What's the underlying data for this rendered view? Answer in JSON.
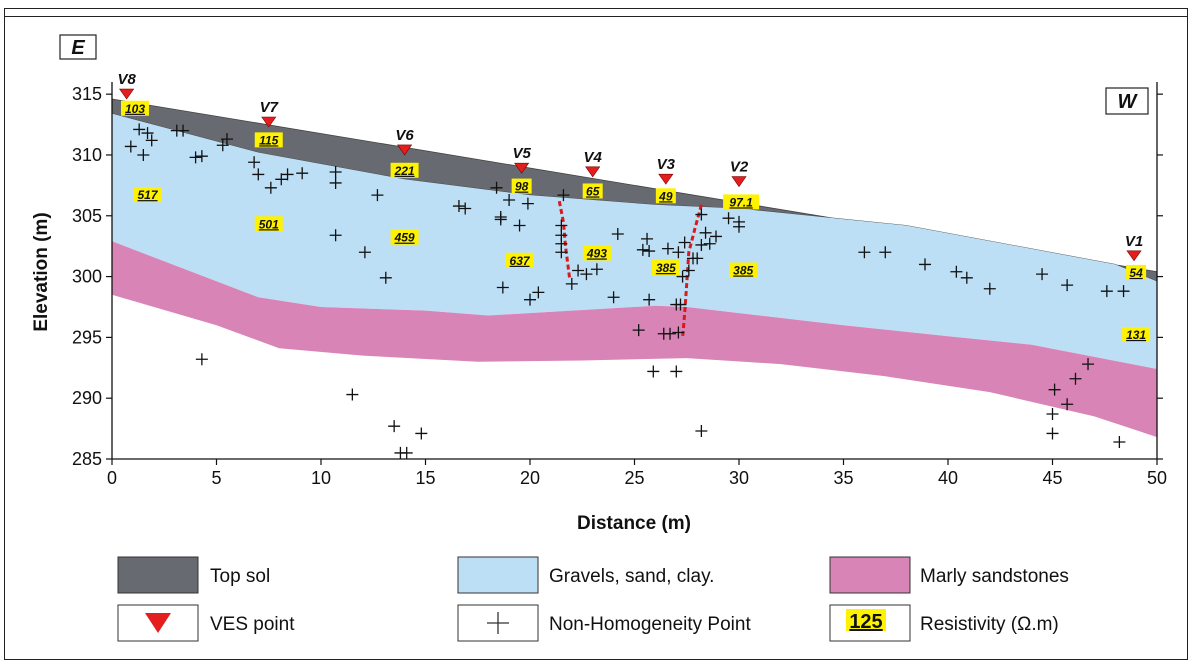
{
  "chart_data": {
    "type": "cross-section",
    "title": "",
    "xlabel": "Distance (m)",
    "ylabel": "Elevation (m)",
    "xlim": [
      0,
      50
    ],
    "ylim": [
      285,
      316
    ],
    "xticks": [
      0,
      5,
      10,
      15,
      20,
      25,
      30,
      35,
      40,
      45,
      50
    ],
    "yticks": [
      285,
      290,
      295,
      300,
      305,
      310,
      315
    ],
    "direction_left": "E",
    "direction_right": "W",
    "surface_top": [
      [
        0,
        314.6
      ],
      [
        50,
        300.4
      ]
    ],
    "topsoil_base": [
      [
        0,
        313.4
      ],
      [
        7,
        310.2
      ],
      [
        14,
        308.0
      ],
      [
        20,
        306.7
      ],
      [
        26,
        305.9
      ],
      [
        30,
        305.6
      ],
      [
        38,
        304.2
      ],
      [
        48,
        301.0
      ],
      [
        50,
        299.6
      ]
    ],
    "marl_top": [
      [
        0,
        302.9
      ],
      [
        7,
        298.3
      ],
      [
        10,
        297.5
      ],
      [
        15,
        297.2
      ],
      [
        18,
        296.8
      ],
      [
        22,
        297.2
      ],
      [
        26,
        297.6
      ],
      [
        27.5,
        297.5
      ],
      [
        30,
        297.0
      ],
      [
        35,
        296.0
      ],
      [
        40,
        295.1
      ],
      [
        44,
        294.4
      ],
      [
        50,
        292.4
      ]
    ],
    "marl_base": [
      [
        0,
        298.5
      ],
      [
        5,
        296.0
      ],
      [
        8,
        294.1
      ],
      [
        12,
        293.5
      ],
      [
        17.5,
        293.0
      ],
      [
        22.5,
        293.1
      ],
      [
        27.5,
        293.3
      ],
      [
        32,
        292.8
      ],
      [
        37,
        291.8
      ],
      [
        42,
        290.5
      ],
      [
        47,
        288.5
      ],
      [
        50,
        286.8
      ]
    ],
    "ves_points": [
      {
        "name": "V8",
        "x": 0.7,
        "y": 314.6
      },
      {
        "name": "V7",
        "x": 7.5,
        "y": 312.3
      },
      {
        "name": "V6",
        "x": 14.0,
        "y": 310.0
      },
      {
        "name": "V5",
        "x": 19.6,
        "y": 308.5
      },
      {
        "name": "V4",
        "x": 23.0,
        "y": 308.2
      },
      {
        "name": "V3",
        "x": 26.5,
        "y": 307.6
      },
      {
        "name": "V2",
        "x": 30.0,
        "y": 307.4
      },
      {
        "name": "V1",
        "x": 48.9,
        "y": 301.3
      }
    ],
    "resistivity_labels": [
      {
        "value": "103",
        "x": 1.1,
        "y": 313.8
      },
      {
        "value": "115",
        "x": 7.5,
        "y": 311.2
      },
      {
        "value": "221",
        "x": 14.0,
        "y": 308.7
      },
      {
        "value": "98",
        "x": 19.6,
        "y": 307.4
      },
      {
        "value": "65",
        "x": 23.0,
        "y": 307.0
      },
      {
        "value": "49",
        "x": 26.5,
        "y": 306.6
      },
      {
        "value": "97.1",
        "x": 30.1,
        "y": 306.1
      },
      {
        "value": "54",
        "x": 49.0,
        "y": 300.3
      },
      {
        "value": "517",
        "x": 1.7,
        "y": 306.7
      },
      {
        "value": "501",
        "x": 7.5,
        "y": 304.3
      },
      {
        "value": "459",
        "x": 14.0,
        "y": 303.2
      },
      {
        "value": "637",
        "x": 19.5,
        "y": 301.3
      },
      {
        "value": "493",
        "x": 23.2,
        "y": 301.9
      },
      {
        "value": "385",
        "x": 26.5,
        "y": 300.7
      },
      {
        "value": "385",
        "x": 30.2,
        "y": 300.5
      },
      {
        "value": "131",
        "x": 49.0,
        "y": 295.2
      }
    ],
    "non_homogeneity_points": [
      [
        0.9,
        310.7
      ],
      [
        1.3,
        312.1
      ],
      [
        1.5,
        310.0
      ],
      [
        1.7,
        311.8
      ],
      [
        1.9,
        311.2
      ],
      [
        3.1,
        312.0
      ],
      [
        3.4,
        312.0
      ],
      [
        4.0,
        309.8
      ],
      [
        4.3,
        309.9
      ],
      [
        5.3,
        310.8
      ],
      [
        5.5,
        311.3
      ],
      [
        6.8,
        309.4
      ],
      [
        7.0,
        308.4
      ],
      [
        7.6,
        307.3
      ],
      [
        8.1,
        308.0
      ],
      [
        8.4,
        308.4
      ],
      [
        9.1,
        308.5
      ],
      [
        10.7,
        308.6
      ],
      [
        10.7,
        307.7
      ],
      [
        12.7,
        306.7
      ],
      [
        10.7,
        303.4
      ],
      [
        12.1,
        302.0
      ],
      [
        13.1,
        299.9
      ],
      [
        16.6,
        305.8
      ],
      [
        16.9,
        305.6
      ],
      [
        18.4,
        307.3
      ],
      [
        18.6,
        304.7
      ],
      [
        18.6,
        304.9
      ],
      [
        19.0,
        306.3
      ],
      [
        19.5,
        304.2
      ],
      [
        19.9,
        306.0
      ],
      [
        18.7,
        299.1
      ],
      [
        20.0,
        298.1
      ],
      [
        20.4,
        298.7
      ],
      [
        21.6,
        306.7
      ],
      [
        21.5,
        304.2
      ],
      [
        21.5,
        303.4
      ],
      [
        21.5,
        302.7
      ],
      [
        21.5,
        302.0
      ],
      [
        22.0,
        299.4
      ],
      [
        22.3,
        300.5
      ],
      [
        22.7,
        300.2
      ],
      [
        23.2,
        300.6
      ],
      [
        24.2,
        303.5
      ],
      [
        24.0,
        298.3
      ],
      [
        25.4,
        302.2
      ],
      [
        25.6,
        303.1
      ],
      [
        25.7,
        302.1
      ],
      [
        25.7,
        298.1
      ],
      [
        25.2,
        295.6
      ],
      [
        25.9,
        292.2
      ],
      [
        26.4,
        295.3
      ],
      [
        26.7,
        295.3
      ],
      [
        26.6,
        302.3
      ],
      [
        27.1,
        302.0
      ],
      [
        27.4,
        302.8
      ],
      [
        27.0,
        297.7
      ],
      [
        27.2,
        297.7
      ],
      [
        27.1,
        295.4
      ],
      [
        27.0,
        292.2
      ],
      [
        27.3,
        300.0
      ],
      [
        27.6,
        300.5
      ],
      [
        27.8,
        301.5
      ],
      [
        28.0,
        301.5
      ],
      [
        28.2,
        302.6
      ],
      [
        28.2,
        305.1
      ],
      [
        28.6,
        302.7
      ],
      [
        28.9,
        303.3
      ],
      [
        28.4,
        303.6
      ],
      [
        29.5,
        304.8
      ],
      [
        30.0,
        304.5
      ],
      [
        30.0,
        304.1
      ],
      [
        28.2,
        287.3
      ],
      [
        36.0,
        302.0
      ],
      [
        37.0,
        302.0
      ],
      [
        38.9,
        301.0
      ],
      [
        40.4,
        300.4
      ],
      [
        40.9,
        299.9
      ],
      [
        42.0,
        299.0
      ],
      [
        44.5,
        300.2
      ],
      [
        45.7,
        299.3
      ],
      [
        47.6,
        298.8
      ],
      [
        48.4,
        298.8
      ],
      [
        46.7,
        292.8
      ],
      [
        46.1,
        291.6
      ],
      [
        45.7,
        289.5
      ],
      [
        45.1,
        290.7
      ],
      [
        45.0,
        288.7
      ],
      [
        45.0,
        287.1
      ],
      [
        48.2,
        286.4
      ],
      [
        4.3,
        293.2
      ],
      [
        11.5,
        290.3
      ],
      [
        13.5,
        287.7
      ],
      [
        13.8,
        285.5
      ],
      [
        14.1,
        285.5
      ],
      [
        14.8,
        287.1
      ]
    ],
    "fault_lines": [
      [
        [
          21.4,
          306.2
        ],
        [
          21.6,
          304.5
        ],
        [
          21.7,
          302.5
        ],
        [
          21.9,
          299.8
        ]
      ],
      [
        [
          28.2,
          305.9
        ],
        [
          27.9,
          304.0
        ],
        [
          27.6,
          302.0
        ],
        [
          27.5,
          299.5
        ],
        [
          27.4,
          297.0
        ],
        [
          27.3,
          295.0
        ]
      ]
    ]
  },
  "legend": {
    "items": [
      {
        "label": "Top sol",
        "color": "#676a70"
      },
      {
        "label": "Gravels, sand, clay.",
        "color": "#bddff5"
      },
      {
        "label": "Marly sandstones",
        "color": "#d984b6"
      },
      {
        "label": "VES point",
        "color": "#e41e1e"
      },
      {
        "label": "Non-Homogeneity Point",
        "color": "#333333"
      },
      {
        "label": "Resistivity (Ω.m)",
        "sample_value": "125",
        "color": "#fff200"
      }
    ]
  },
  "colors": {
    "topsoil": "#676a70",
    "gravel": "#bddff5",
    "marl": "#d984b6",
    "ves": "#e41e1e",
    "resistivity_box": "#fff200",
    "fault": "#d71a1a"
  }
}
